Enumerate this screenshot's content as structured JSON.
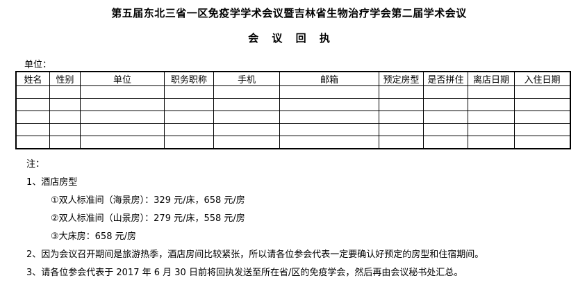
{
  "document": {
    "title": "第五届东北三省一区免疫学学术会议暨吉林省生物治疗学会第二届学术会议",
    "subtitle": "会 议 回 执",
    "unit_label": "单位："
  },
  "table": {
    "empty_rows": 5,
    "columns": [
      {
        "key": "name",
        "label": "姓名"
      },
      {
        "key": "gender",
        "label": "性别"
      },
      {
        "key": "organization",
        "label": "单位"
      },
      {
        "key": "position-title",
        "label": "职务职称"
      },
      {
        "key": "mobile",
        "label": "手机"
      },
      {
        "key": "email",
        "label": "邮箱"
      },
      {
        "key": "room-type",
        "label": "预定房型"
      },
      {
        "key": "share-room",
        "label": "是否拼住"
      },
      {
        "key": "checkout-date",
        "label": "离店日期"
      },
      {
        "key": "checkin-date",
        "label": "入住日期"
      }
    ]
  },
  "notes": {
    "label": "注：",
    "items": [
      {
        "text": "1、酒店房型"
      },
      {
        "text": "①双人标准间（海景房）：329 元/床，658 元/房"
      },
      {
        "text": "②双人标准间（山景房）：279 元/床，558 元/房"
      },
      {
        "text": "③大床房：658 元/房"
      },
      {
        "text": "2、因为会议召开期间是旅游热季，酒店房间比较紧张，所以请各位参会代表一定要确认好预定的房型和住宿期间。"
      },
      {
        "text": "3、请各位参会代表于 2017 年 6 月 30 日前将回执发送至所在省/区的免疫学会，然后再由会议秘书处汇总。"
      }
    ]
  },
  "colors": {
    "text": "#000000",
    "background": "#ffffff",
    "border": "#000000"
  }
}
